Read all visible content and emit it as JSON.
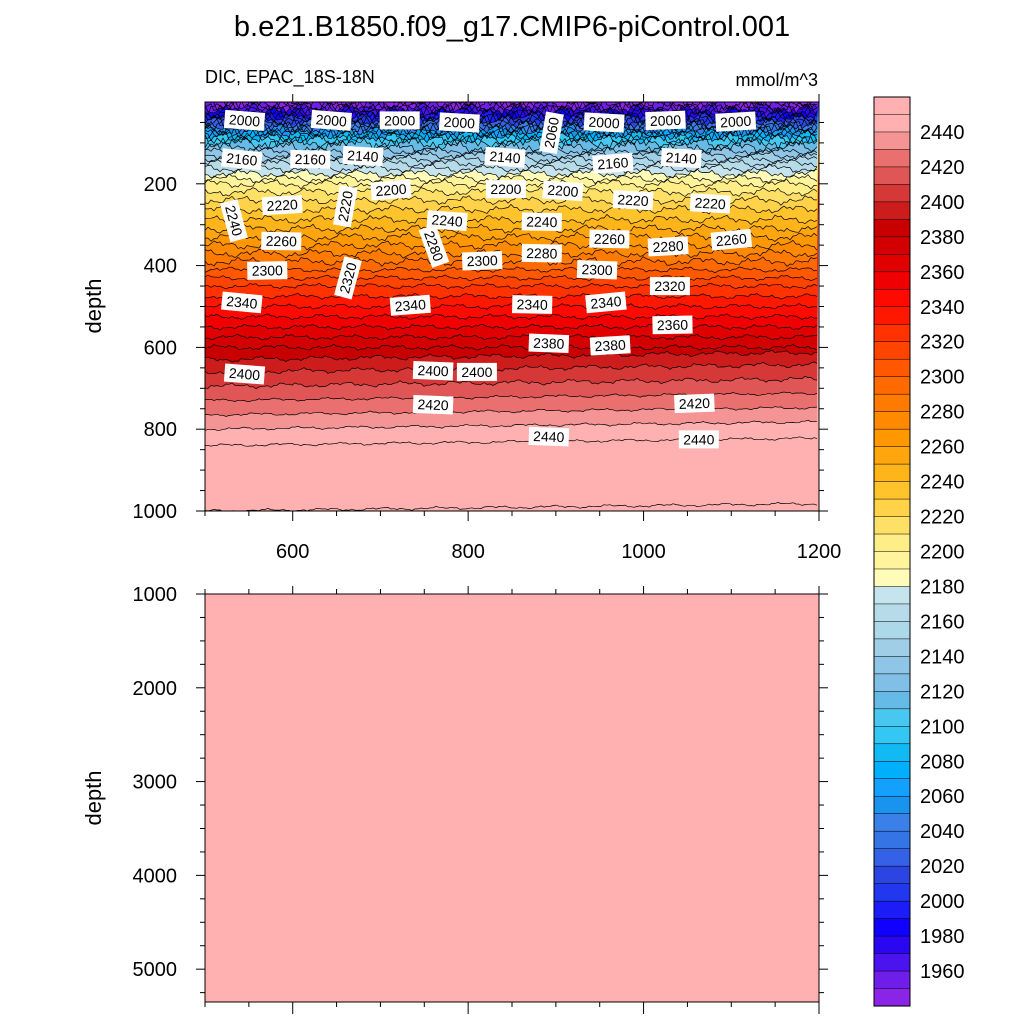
{
  "chart_data": {
    "type": "heatmap",
    "title": "b.e21.B1850.f09_g17.CMIP6-piControl.001",
    "left_label": "DIC, EPAC_18S-18N",
    "right_label": "mmol/m^3",
    "panels": [
      {
        "name": "upper",
        "ylabel": "depth",
        "xlim": [
          500,
          1200
        ],
        "ylim": [
          1000,
          0
        ],
        "x_ticks": [
          "600",
          "800",
          "1000",
          "1200"
        ],
        "y_ticks": [
          "200",
          "400",
          "600",
          "800",
          "1000"
        ],
        "contour_labels": [
          {
            "text": "2000",
            "x": 545,
            "depth": 45
          },
          {
            "text": "2000",
            "x": 644,
            "depth": 45
          },
          {
            "text": "2000",
            "x": 722,
            "depth": 45
          },
          {
            "text": "2000",
            "x": 790,
            "depth": 50
          },
          {
            "text": "2060",
            "x": 895,
            "depth": 75
          },
          {
            "text": "2000",
            "x": 955,
            "depth": 50
          },
          {
            "text": "2000",
            "x": 1025,
            "depth": 45
          },
          {
            "text": "2000",
            "x": 1105,
            "depth": 48
          },
          {
            "text": "2160",
            "x": 542,
            "depth": 140
          },
          {
            "text": "2160",
            "x": 620,
            "depth": 140
          },
          {
            "text": "2140",
            "x": 680,
            "depth": 132
          },
          {
            "text": "2140",
            "x": 842,
            "depth": 135
          },
          {
            "text": "2160",
            "x": 965,
            "depth": 150
          },
          {
            "text": "2140",
            "x": 1043,
            "depth": 137
          },
          {
            "text": "2240",
            "x": 533,
            "depth": 290
          },
          {
            "text": "2220",
            "x": 660,
            "depth": 255
          },
          {
            "text": "2200",
            "x": 712,
            "depth": 215
          },
          {
            "text": "2200",
            "x": 843,
            "depth": 213
          },
          {
            "text": "2200",
            "x": 908,
            "depth": 217
          },
          {
            "text": "2220",
            "x": 988,
            "depth": 240
          },
          {
            "text": "2220",
            "x": 1076,
            "depth": 248
          },
          {
            "text": "2220",
            "x": 588,
            "depth": 252
          },
          {
            "text": "2240",
            "x": 776,
            "depth": 290
          },
          {
            "text": "2240",
            "x": 884,
            "depth": 293
          },
          {
            "text": "2260",
            "x": 587,
            "depth": 340
          },
          {
            "text": "2280",
            "x": 761,
            "depth": 352
          },
          {
            "text": "2280",
            "x": 884,
            "depth": 370
          },
          {
            "text": "2260",
            "x": 961,
            "depth": 335
          },
          {
            "text": "2280",
            "x": 1028,
            "depth": 353
          },
          {
            "text": "2260",
            "x": 1100,
            "depth": 337
          },
          {
            "text": "2300",
            "x": 571,
            "depth": 412
          },
          {
            "text": "2320",
            "x": 663,
            "depth": 430
          },
          {
            "text": "2300",
            "x": 816,
            "depth": 388
          },
          {
            "text": "2300",
            "x": 947,
            "depth": 410
          },
          {
            "text": "2320",
            "x": 1030,
            "depth": 450
          },
          {
            "text": "2340",
            "x": 542,
            "depth": 490
          },
          {
            "text": "2340",
            "x": 734,
            "depth": 497
          },
          {
            "text": "2340",
            "x": 873,
            "depth": 495
          },
          {
            "text": "2340",
            "x": 957,
            "depth": 490
          },
          {
            "text": "2360",
            "x": 1033,
            "depth": 545
          },
          {
            "text": "2380",
            "x": 892,
            "depth": 590
          },
          {
            "text": "2380",
            "x": 962,
            "depth": 595
          },
          {
            "text": "2400",
            "x": 545,
            "depth": 665
          },
          {
            "text": "2400",
            "x": 760,
            "depth": 657
          },
          {
            "text": "2400",
            "x": 810,
            "depth": 660
          },
          {
            "text": "2420",
            "x": 760,
            "depth": 740
          },
          {
            "text": "2420",
            "x": 1058,
            "depth": 737
          },
          {
            "text": "2440",
            "x": 892,
            "depth": 818
          },
          {
            "text": "2440",
            "x": 1063,
            "depth": 825
          }
        ]
      },
      {
        "name": "lower",
        "ylabel": "depth",
        "xlim": [
          500,
          1200
        ],
        "ylim": [
          5350,
          1000
        ],
        "x_ticks": [],
        "y_ticks": [
          "1000",
          "2000",
          "3000",
          "4000",
          "5000"
        ],
        "fill_value": "> 2450"
      }
    ],
    "colorbar": {
      "min": 1940,
      "max": 2460,
      "step": 10,
      "tick_labels": [
        "2440",
        "2420",
        "2400",
        "2380",
        "2360",
        "2340",
        "2320",
        "2300",
        "2280",
        "2260",
        "2240",
        "2220",
        "2200",
        "2180",
        "2160",
        "2140",
        "2120",
        "2100",
        "2080",
        "2060",
        "2040",
        "2020",
        "2000",
        "1980",
        "1960"
      ],
      "colors": [
        "#8a24e6",
        "#6e1ee8",
        "#4b14ee",
        "#2a06f2",
        "#0f00ff",
        "#1c1cf7",
        "#2238ee",
        "#2c45e2",
        "#3461e6",
        "#3574e4",
        "#3a80e8",
        "#1994ee",
        "#14a0ff",
        "#00b0ff",
        "#12baf4",
        "#33c8f4",
        "#48c8f0",
        "#66bbe6",
        "#80bfe6",
        "#8fc6e8",
        "#a0cee6",
        "#add8ea",
        "#b8dbea",
        "#c6e4ee",
        "#fffbb8",
        "#fff49c",
        "#ffee88",
        "#ffe066",
        "#ffd24a",
        "#ffc42c",
        "#ffb41a",
        "#ffa60e",
        "#ff9800",
        "#ff8a00",
        "#ff7a00",
        "#ff6a00",
        "#ff5800",
        "#ff4400",
        "#ff3200",
        "#ff1800",
        "#ff0a00",
        "#f00000",
        "#e00000",
        "#d20000",
        "#c80000",
        "#cc1c1c",
        "#d63838",
        "#e05555",
        "#ea7070",
        "#f49494",
        "#ffb0b0",
        "#ffb0b0"
      ]
    }
  }
}
